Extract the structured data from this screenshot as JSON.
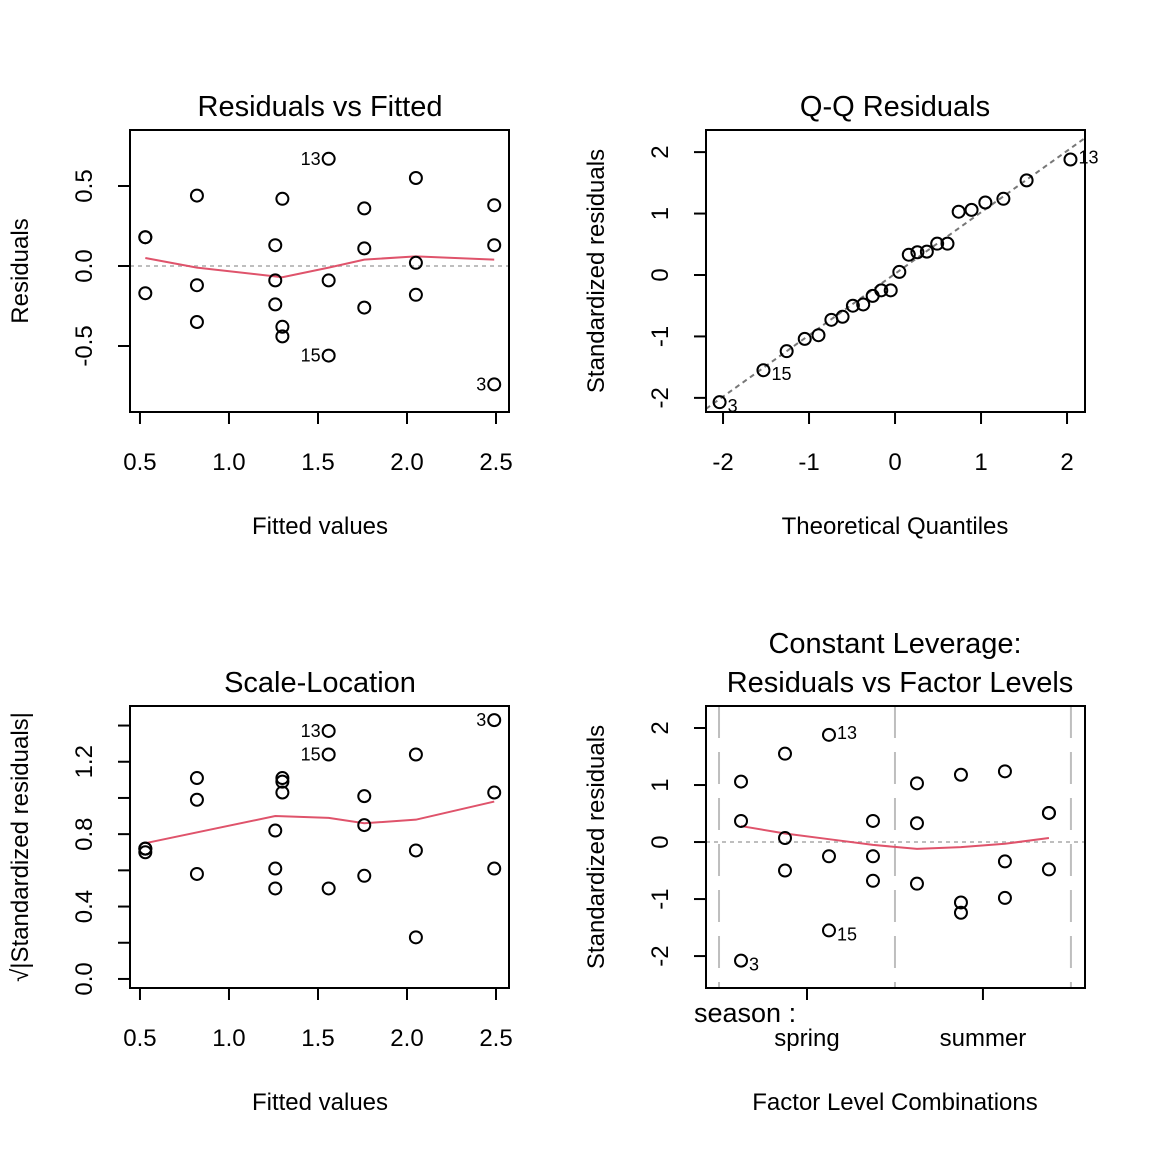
{
  "chart_data": [
    {
      "type": "scatter",
      "title": "Residuals vs Fitted",
      "xlabel": "Fitted values",
      "ylabel": "Residuals",
      "xlim": [
        0.444,
        2.573
      ],
      "ylim": [
        -0.9125,
        0.85
      ],
      "xticks": [
        {
          "v": 0.5,
          "label": "0.5"
        },
        {
          "v": 1.0,
          "label": "1.0"
        },
        {
          "v": 1.5,
          "label": "1.5"
        },
        {
          "v": 2.0,
          "label": "2.0"
        },
        {
          "v": 2.5,
          "label": "2.5"
        }
      ],
      "yticks": [
        {
          "v": -0.5,
          "label": "-0.5"
        },
        {
          "v": 0.0,
          "label": "0.0"
        },
        {
          "v": 0.5,
          "label": "0.5"
        }
      ],
      "hline": {
        "y": 0,
        "style": "dotted"
      },
      "points": [
        [
          0.53,
          0.18
        ],
        [
          0.53,
          0.18
        ],
        [
          0.53,
          -0.17
        ],
        [
          0.82,
          0.44
        ],
        [
          0.82,
          -0.12
        ],
        [
          0.82,
          -0.35
        ],
        [
          1.26,
          0.13
        ],
        [
          1.26,
          -0.09
        ],
        [
          1.26,
          -0.24
        ],
        [
          1.3,
          0.42
        ],
        [
          1.3,
          -0.38
        ],
        [
          1.3,
          -0.44
        ],
        [
          1.56,
          0.67,
          "13"
        ],
        [
          1.56,
          -0.09
        ],
        [
          1.56,
          -0.56,
          "15"
        ],
        [
          1.76,
          0.36
        ],
        [
          1.76,
          0.11
        ],
        [
          1.76,
          -0.26
        ],
        [
          2.05,
          0.55
        ],
        [
          2.05,
          0.02
        ],
        [
          2.05,
          -0.18
        ],
        [
          2.49,
          0.38
        ],
        [
          2.49,
          0.13
        ],
        [
          2.49,
          -0.74,
          "3"
        ]
      ],
      "smooth": [
        [
          0.53,
          0.05
        ],
        [
          0.82,
          -0.01
        ],
        [
          1.3,
          -0.07
        ],
        [
          1.56,
          -0.01
        ],
        [
          1.76,
          0.04
        ],
        [
          2.05,
          0.06
        ],
        [
          2.49,
          0.04
        ]
      ],
      "smooth_color": "#DF536B"
    },
    {
      "type": "scatter",
      "title": "Q-Q Residuals",
      "xlabel": "Theoretical Quantiles",
      "ylabel": "Standardized residuals",
      "xlim": [
        -2.198,
        2.209
      ],
      "ylim": [
        -2.23,
        2.36
      ],
      "xticks": [
        {
          "v": -2,
          "label": "-2"
        },
        {
          "v": -1,
          "label": "-1"
        },
        {
          "v": 0,
          "label": "0"
        },
        {
          "v": 1,
          "label": "1"
        },
        {
          "v": 2,
          "label": "2"
        }
      ],
      "yticks": [
        {
          "v": -2,
          "label": "-2"
        },
        {
          "v": -1,
          "label": "-1"
        },
        {
          "v": 0,
          "label": "0"
        },
        {
          "v": 1,
          "label": "1"
        },
        {
          "v": 2,
          "label": "2"
        }
      ],
      "abline": {
        "intercept": 0.02,
        "slope": 1.0,
        "style": "dashed"
      },
      "points": [
        [
          -2.04,
          -2.07,
          "3"
        ],
        [
          -1.53,
          -1.55,
          "15"
        ],
        [
          -1.26,
          -1.24
        ],
        [
          -1.05,
          -1.04
        ],
        [
          -0.89,
          -0.98
        ],
        [
          -0.74,
          -0.73
        ],
        [
          -0.61,
          -0.68
        ],
        [
          -0.49,
          -0.5
        ],
        [
          -0.37,
          -0.48
        ],
        [
          -0.26,
          -0.34
        ],
        [
          -0.16,
          -0.25
        ],
        [
          -0.05,
          -0.25
        ],
        [
          0.05,
          0.05
        ],
        [
          0.16,
          0.33
        ],
        [
          0.26,
          0.37
        ],
        [
          0.37,
          0.38
        ],
        [
          0.49,
          0.51
        ],
        [
          0.61,
          0.51
        ],
        [
          0.74,
          1.03
        ],
        [
          0.89,
          1.06
        ],
        [
          1.05,
          1.18
        ],
        [
          1.26,
          1.24
        ],
        [
          1.53,
          1.54
        ],
        [
          2.04,
          1.88,
          "13"
        ]
      ]
    },
    {
      "type": "scatter",
      "title": "Scale-Location",
      "xlabel": "Fitted values",
      "ylabel": "√|Standardized residuals|",
      "xlim": [
        0.444,
        2.573
      ],
      "ylim": [
        -0.05,
        1.508
      ],
      "xticks": [
        {
          "v": 0.5,
          "label": "0.5"
        },
        {
          "v": 1.0,
          "label": "1.0"
        },
        {
          "v": 1.5,
          "label": "1.5"
        },
        {
          "v": 2.0,
          "label": "2.0"
        },
        {
          "v": 2.5,
          "label": "2.5"
        }
      ],
      "yticks": [
        {
          "v": 0.0,
          "label": "0.0"
        },
        {
          "v": 0.2,
          "label": ""
        },
        {
          "v": 0.4,
          "label": "0.4"
        },
        {
          "v": 0.6,
          "label": ""
        },
        {
          "v": 0.8,
          "label": "0.8"
        },
        {
          "v": 1.0,
          "label": ""
        },
        {
          "v": 1.2,
          "label": "1.2"
        },
        {
          "v": 1.4,
          "label": ""
        }
      ],
      "points": [
        [
          0.53,
          0.72
        ],
        [
          0.53,
          0.72
        ],
        [
          0.53,
          0.7
        ],
        [
          0.82,
          1.11
        ],
        [
          0.82,
          0.99
        ],
        [
          0.82,
          0.58
        ],
        [
          1.26,
          0.82
        ],
        [
          1.26,
          0.61
        ],
        [
          1.26,
          0.5
        ],
        [
          1.3,
          1.11
        ],
        [
          1.3,
          1.09
        ],
        [
          1.3,
          1.03
        ],
        [
          1.56,
          1.37,
          "13"
        ],
        [
          1.56,
          1.24,
          "15"
        ],
        [
          1.56,
          0.5
        ],
        [
          1.76,
          1.01
        ],
        [
          1.76,
          0.85
        ],
        [
          1.76,
          0.57
        ],
        [
          2.05,
          1.24
        ],
        [
          2.05,
          0.71
        ],
        [
          2.05,
          0.23
        ],
        [
          2.49,
          1.43,
          "3"
        ],
        [
          2.49,
          1.03
        ],
        [
          2.49,
          0.61
        ]
      ],
      "smooth": [
        [
          0.53,
          0.75
        ],
        [
          1.26,
          0.9
        ],
        [
          1.56,
          0.89
        ],
        [
          1.76,
          0.86
        ],
        [
          2.05,
          0.88
        ],
        [
          2.49,
          0.98
        ]
      ],
      "smooth_color": "#DF536B"
    },
    {
      "type": "scatter",
      "title": "Constant Leverage:",
      "title2": "Residuals vs Factor Levels",
      "xlabel": "Factor Level Combinations",
      "ylabel": "Standardized residuals",
      "factor_name": "season :",
      "xlim": [
        0.426,
        2.58
      ],
      "ylim": [
        -2.56,
        2.386
      ],
      "xticks": [
        {
          "v": 1,
          "label": "spring"
        },
        {
          "v": 2,
          "label": "summer"
        }
      ],
      "yticks": [
        {
          "v": -2,
          "label": "-2"
        },
        {
          "v": -1,
          "label": "-1"
        },
        {
          "v": 0,
          "label": "0"
        },
        {
          "v": 1,
          "label": "1"
        },
        {
          "v": 2,
          "label": "2"
        }
      ],
      "hline": {
        "y": 0,
        "style": "dotted"
      },
      "vlines": [
        0.5,
        1.5,
        2.5
      ],
      "points": [
        [
          0.625,
          1.06
        ],
        [
          0.625,
          0.37
        ],
        [
          0.625,
          -2.08,
          "3"
        ],
        [
          0.875,
          1.55
        ],
        [
          0.875,
          0.07
        ],
        [
          0.875,
          -0.5
        ],
        [
          1.125,
          1.88,
          "13"
        ],
        [
          1.125,
          -0.25
        ],
        [
          1.125,
          -1.55,
          "15"
        ],
        [
          1.375,
          0.37
        ],
        [
          1.375,
          -0.25
        ],
        [
          1.375,
          -0.68
        ],
        [
          1.625,
          1.03
        ],
        [
          1.625,
          0.33
        ],
        [
          1.625,
          -0.73
        ],
        [
          1.875,
          1.18
        ],
        [
          1.875,
          -1.06
        ],
        [
          1.875,
          -1.24
        ],
        [
          2.125,
          1.24
        ],
        [
          2.125,
          -0.34
        ],
        [
          2.125,
          -0.98
        ],
        [
          2.375,
          0.51
        ],
        [
          2.375,
          0.51
        ],
        [
          2.375,
          -0.48
        ]
      ],
      "smooth": [
        [
          0.625,
          0.28
        ],
        [
          0.875,
          0.15
        ],
        [
          1.125,
          0.05
        ],
        [
          1.375,
          -0.05
        ],
        [
          1.625,
          -0.12
        ],
        [
          1.875,
          -0.09
        ],
        [
          2.125,
          -0.03
        ],
        [
          2.375,
          0.07
        ]
      ],
      "smooth_color": "#DF536B"
    }
  ]
}
